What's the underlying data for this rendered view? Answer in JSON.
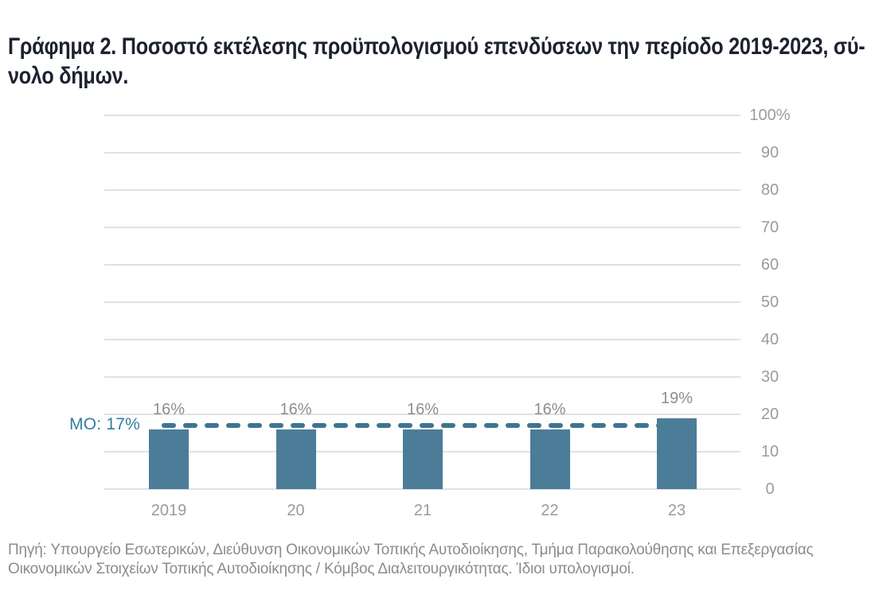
{
  "figure": {
    "title": "Γράφημα 2. Ποσοστό εκτέλεσης προϋπολογισμού επενδύσεων την περίοδο 2019-2023, σύ-\nνολο δήμων.",
    "source_note": "Πηγή: Υπουργείο Εσωτερικών, Διεύθυνση Οικονομικών Τοπικής Αυτοδιοίκησης, Τμήμα Παρακολούθησης και Επεξεργασίας\nΟικονομικών Στοιχείων Τοπικής Αυτοδιοίκησης / Κόμβος Διαλειτουργικότητας. Ίδιοι υπολογισμοί."
  },
  "chart_data": {
    "type": "bar",
    "title": "Γράφημα 2. Ποσοστό εκτέλεσης προϋπολογισμού επενδύσεων την περίοδο 2019-2023, σύνολο δήμων.",
    "categories": [
      "2019",
      "20",
      "21",
      "22",
      "23"
    ],
    "values": [
      16,
      16,
      16,
      16,
      19
    ],
    "value_labels": [
      "16%",
      "16%",
      "16%",
      "16%",
      "19%"
    ],
    "average_line": {
      "label": "ΜΟ: 17%",
      "value": 17,
      "style": "dashed"
    },
    "ylim": [
      0,
      100
    ],
    "ytick_step": 10,
    "ytick_labels": [
      "0",
      "10",
      "20",
      "30",
      "40",
      "50",
      "60",
      "70",
      "80",
      "90",
      "100%"
    ],
    "yaxis_side": "right",
    "grid": true,
    "xlabel": "",
    "ylabel": "",
    "legend": null
  },
  "colors": {
    "bar": "#4B7C98",
    "average_line": "#3E7492",
    "average_label": "#2F7FA1",
    "grid": "#E1E1E1",
    "axis_text": "#9B9B9B",
    "value_label": "#8E8E8E",
    "title": "#1C2230",
    "source": "#8C8C8C",
    "background": "#FFFFFF"
  }
}
